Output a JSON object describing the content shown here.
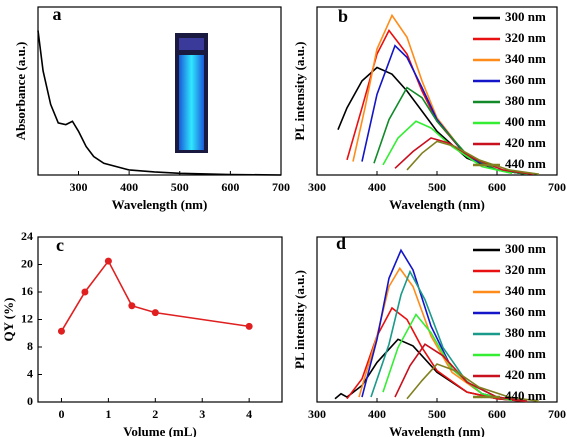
{
  "chart_data": [
    {
      "type": "line",
      "label": "a",
      "xlabel": "Wavelength (nm)",
      "ylabel": "Absorbance (a.u.)",
      "xlim": [
        220,
        700
      ],
      "xticks": [
        300,
        400,
        500,
        600,
        700
      ],
      "ylim": [
        0,
        100
      ],
      "color": "#000000",
      "x": [
        220,
        230,
        245,
        260,
        275,
        288,
        300,
        315,
        330,
        350,
        400,
        450,
        500,
        600,
        700
      ],
      "values": [
        86,
        62,
        42,
        31,
        30,
        32,
        26,
        17,
        11,
        7,
        3,
        1.8,
        1,
        0.3,
        0
      ]
    },
    {
      "type": "line",
      "label": "b",
      "xlabel": "Wavelength (nm)",
      "ylabel": "PL intensity (a.u.)",
      "xlim": [
        300,
        700
      ],
      "xticks": [
        300,
        400,
        500,
        600,
        700
      ],
      "ylim": [
        0,
        100
      ],
      "series": [
        {
          "name": "300 nm",
          "color": "#000000",
          "x": [
            335,
            350,
            375,
            400,
            425,
            450,
            475,
            500,
            550,
            600,
            650
          ],
          "values": [
            27,
            40,
            56,
            64,
            60,
            50,
            38,
            26,
            10,
            3,
            0.5
          ]
        },
        {
          "name": "320 nm",
          "color": "#e81010",
          "x": [
            350,
            375,
            400,
            420,
            450,
            475,
            500,
            550,
            600,
            650
          ],
          "values": [
            9,
            40,
            72,
            86,
            72,
            50,
            32,
            11,
            3,
            0.5
          ]
        },
        {
          "name": "340 nm",
          "color": "#ff8c1a",
          "x": [
            360,
            380,
            400,
            425,
            450,
            475,
            500,
            550,
            600,
            650
          ],
          "values": [
            8,
            40,
            75,
            95,
            82,
            56,
            34,
            11,
            3,
            0.5
          ]
        },
        {
          "name": "360 nm",
          "color": "#1414c8",
          "x": [
            375,
            400,
            430,
            450,
            475,
            500,
            550,
            600,
            650
          ],
          "values": [
            8,
            48,
            77,
            70,
            52,
            33,
            11,
            3,
            0.5
          ]
        },
        {
          "name": "380 nm",
          "color": "#128a2a",
          "x": [
            395,
            420,
            450,
            475,
            500,
            550,
            600,
            650
          ],
          "values": [
            7,
            33,
            52,
            46,
            32,
            12,
            3,
            0.5
          ]
        },
        {
          "name": "400 nm",
          "color": "#33ee33",
          "x": [
            410,
            435,
            465,
            490,
            525,
            575,
            625
          ],
          "values": [
            6,
            22,
            32,
            28,
            17,
            5,
            1
          ]
        },
        {
          "name": "420 nm",
          "color": "#c8101e",
          "x": [
            430,
            460,
            490,
            520,
            560,
            610,
            660
          ],
          "values": [
            4,
            14,
            22,
            19,
            10,
            3,
            0.5
          ]
        },
        {
          "name": "440 nm",
          "color": "#808020",
          "x": [
            450,
            475,
            500,
            530,
            570,
            620,
            670
          ],
          "values": [
            3,
            13,
            20,
            17,
            9,
            3,
            0.5
          ]
        }
      ]
    },
    {
      "type": "line",
      "label": "c",
      "xlabel": "Volume (mL)",
      "ylabel": "QY (%)",
      "markers": true,
      "xlim": [
        -0.5,
        4.7
      ],
      "xticks": [
        0,
        1,
        2,
        3,
        4
      ],
      "ylim": [
        0,
        24
      ],
      "yticks": [
        0,
        4,
        8,
        12,
        16,
        20,
        24
      ],
      "color": "#e02020",
      "x": [
        0,
        0.5,
        1,
        1.5,
        2,
        4
      ],
      "values": [
        10.3,
        16,
        20.5,
        14,
        13,
        11
      ]
    },
    {
      "type": "line",
      "label": "d",
      "xlabel": "Wavelength (nm)",
      "ylabel": "PL intensity (a.u.)",
      "xlim": [
        300,
        700
      ],
      "xticks": [
        300,
        400,
        500,
        600,
        700
      ],
      "ylim": [
        0,
        100
      ],
      "series": [
        {
          "name": "300 nm",
          "color": "#000000",
          "x": [
            330,
            340,
            350,
            375,
            400,
            435,
            460,
            500,
            550,
            600,
            650
          ],
          "values": [
            2,
            5,
            3,
            10,
            24,
            38,
            34,
            18,
            6,
            2,
            0.3
          ]
        },
        {
          "name": "320 nm",
          "color": "#e81010",
          "x": [
            350,
            375,
            400,
            425,
            450,
            475,
            500,
            550,
            600,
            650
          ],
          "values": [
            2,
            14,
            40,
            57,
            50,
            33,
            19,
            6,
            2,
            0.3
          ]
        },
        {
          "name": "340 nm",
          "color": "#ff8c1a",
          "x": [
            370,
            400,
            420,
            438,
            460,
            490,
            525,
            575,
            625
          ],
          "values": [
            3,
            40,
            70,
            81,
            70,
            40,
            18,
            5,
            1
          ]
        },
        {
          "name": "360 nm",
          "color": "#1414c8",
          "x": [
            375,
            400,
            420,
            440,
            460,
            490,
            525,
            575,
            625
          ],
          "values": [
            3,
            38,
            75,
            92,
            80,
            46,
            20,
            5,
            1
          ]
        },
        {
          "name": "380 nm",
          "color": "#1a9a8a",
          "x": [
            390,
            420,
            440,
            455,
            480,
            510,
            550,
            600,
            650
          ],
          "values": [
            3,
            35,
            65,
            79,
            62,
            33,
            12,
            3,
            0.5
          ]
        },
        {
          "name": "400 nm",
          "color": "#33ee33",
          "x": [
            410,
            435,
            465,
            490,
            525,
            575,
            625
          ],
          "values": [
            6,
            33,
            53,
            42,
            20,
            5,
            1
          ]
        },
        {
          "name": "420 nm",
          "color": "#c8101e",
          "x": [
            430,
            455,
            480,
            510,
            550,
            600,
            650
          ],
          "values": [
            3,
            22,
            35,
            28,
            12,
            3,
            0.5
          ]
        },
        {
          "name": "440 nm",
          "color": "#808020",
          "x": [
            450,
            475,
            500,
            530,
            570,
            620,
            670
          ],
          "values": [
            2,
            13,
            23,
            19,
            9,
            3,
            0.5
          ]
        }
      ]
    }
  ]
}
